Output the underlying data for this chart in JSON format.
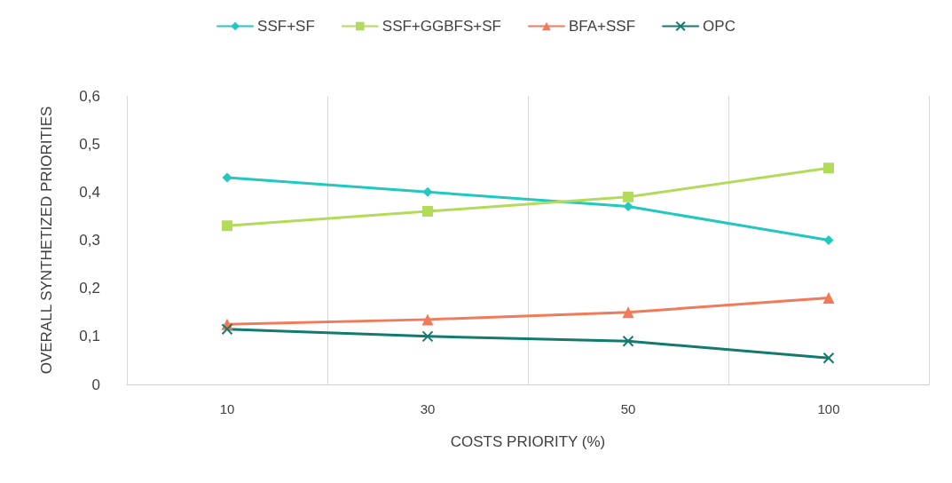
{
  "chart_data": {
    "type": "line",
    "xlabel": "COSTS PRIORITY (%)",
    "ylabel": "OVERALL SYNTHETIZED PRIORITIES",
    "categories": [
      "10",
      "30",
      "50",
      "100"
    ],
    "series": [
      {
        "name": "SSF+SF",
        "color": "#22c7bf",
        "marker": "diamond",
        "values": [
          0.43,
          0.4,
          0.37,
          0.3
        ]
      },
      {
        "name": "SSF+GGBFS+SF",
        "color": "#b3db5a",
        "marker": "square",
        "values": [
          0.33,
          0.36,
          0.39,
          0.45
        ]
      },
      {
        "name": "BFA+SSF",
        "color": "#f07a5a",
        "marker": "triangle",
        "values": [
          0.125,
          0.135,
          0.15,
          0.18
        ]
      },
      {
        "name": "OPC",
        "color": "#127a6e",
        "marker": "cross",
        "values": [
          0.115,
          0.1,
          0.09,
          0.055
        ]
      }
    ],
    "ylim": [
      0,
      0.6
    ],
    "yticks": [
      {
        "value": 0,
        "label": "0"
      },
      {
        "value": 0.1,
        "label": "0,1"
      },
      {
        "value": 0.2,
        "label": "0,2"
      },
      {
        "value": 0.3,
        "label": "0,3"
      },
      {
        "value": 0.4,
        "label": "0,4"
      },
      {
        "value": 0.5,
        "label": "0,5"
      },
      {
        "value": 0.6,
        "label": "0,6"
      }
    ],
    "grid": "x",
    "legend": "top",
    "line_style": "solid"
  }
}
